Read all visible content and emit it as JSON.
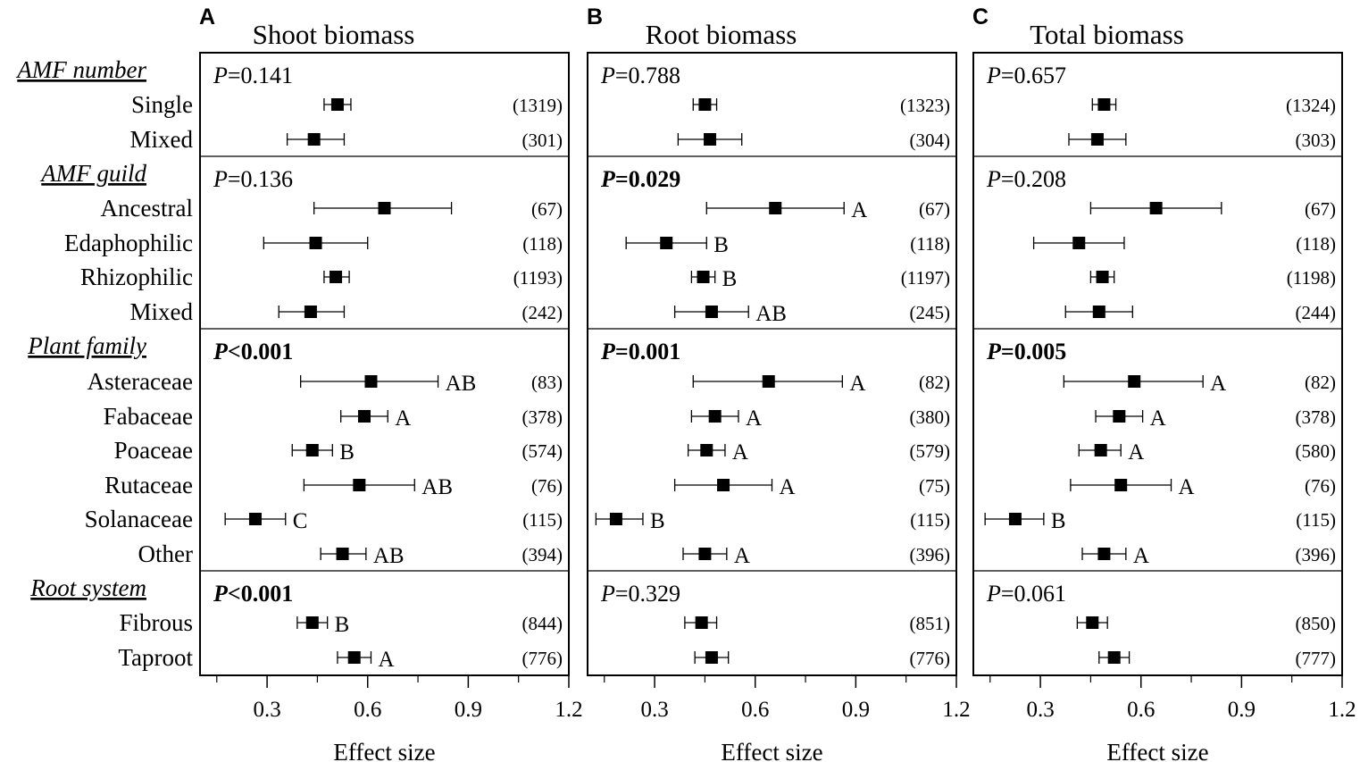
{
  "chart_data": {
    "type": "forest",
    "xlabel": "Effect size",
    "xlim": [
      0.1,
      1.2
    ],
    "xticks": [
      0.3,
      0.6,
      0.9,
      1.2
    ],
    "xtick_labels": [
      "0.3",
      "0.6",
      "0.9",
      "1.2"
    ],
    "groups": [
      {
        "label": "AMF number",
        "rows": [
          "Single",
          "Mixed"
        ]
      },
      {
        "label": "AMF guild",
        "rows": [
          "Ancestral",
          "Edaphophilic",
          "Rhizophilic",
          "Mixed"
        ]
      },
      {
        "label": "Plant family",
        "rows": [
          "Asteraceae",
          "Fabaceae",
          "Poaceae",
          "Rutaceae",
          "Solanaceae",
          "Other"
        ]
      },
      {
        "label": "Root system",
        "rows": [
          "Fibrous",
          "Taproot"
        ]
      }
    ],
    "panels": [
      {
        "letter": "A",
        "title": "Shoot biomass",
        "p_values": [
          {
            "p": "P",
            "v": "=0.141",
            "bold": false
          },
          {
            "p": "P",
            "v": "=0.136",
            "bold": false
          },
          {
            "p": "P",
            "v": "<0.001",
            "bold": true
          },
          {
            "p": "P",
            "v": "<0.001",
            "bold": true
          }
        ],
        "rows": [
          {
            "mean": 0.51,
            "lo": 0.47,
            "hi": 0.55,
            "n": "(1319)",
            "letter": ""
          },
          {
            "mean": 0.44,
            "lo": 0.36,
            "hi": 0.53,
            "n": "(301)",
            "letter": ""
          },
          {
            "mean": 0.65,
            "lo": 0.44,
            "hi": 0.85,
            "n": "(67)",
            "letter": ""
          },
          {
            "mean": 0.445,
            "lo": 0.29,
            "hi": 0.6,
            "n": "(118)",
            "letter": ""
          },
          {
            "mean": 0.505,
            "lo": 0.47,
            "hi": 0.545,
            "n": "(1193)",
            "letter": ""
          },
          {
            "mean": 0.43,
            "lo": 0.335,
            "hi": 0.53,
            "n": "(242)",
            "letter": ""
          },
          {
            "mean": 0.61,
            "lo": 0.4,
            "hi": 0.81,
            "n": "(83)",
            "letter": "AB"
          },
          {
            "mean": 0.59,
            "lo": 0.52,
            "hi": 0.66,
            "n": "(378)",
            "letter": "A"
          },
          {
            "mean": 0.435,
            "lo": 0.375,
            "hi": 0.495,
            "n": "(574)",
            "letter": "B"
          },
          {
            "mean": 0.575,
            "lo": 0.41,
            "hi": 0.74,
            "n": "(76)",
            "letter": "AB"
          },
          {
            "mean": 0.265,
            "lo": 0.175,
            "hi": 0.355,
            "n": "(115)",
            "letter": "C"
          },
          {
            "mean": 0.525,
            "lo": 0.46,
            "hi": 0.595,
            "n": "(394)",
            "letter": "AB"
          },
          {
            "mean": 0.435,
            "lo": 0.39,
            "hi": 0.48,
            "n": "(844)",
            "letter": "B"
          },
          {
            "mean": 0.56,
            "lo": 0.51,
            "hi": 0.61,
            "n": "(776)",
            "letter": "A"
          }
        ]
      },
      {
        "letter": "B",
        "title": "Root biomass",
        "p_values": [
          {
            "p": "P",
            "v": "=0.788",
            "bold": false
          },
          {
            "p": "P",
            "v": "=0.029",
            "bold": true
          },
          {
            "p": "P",
            "v": "=0.001",
            "bold": true
          },
          {
            "p": "P",
            "v": "=0.329",
            "bold": false
          }
        ],
        "rows": [
          {
            "mean": 0.45,
            "lo": 0.415,
            "hi": 0.485,
            "n": "(1323)",
            "letter": ""
          },
          {
            "mean": 0.465,
            "lo": 0.37,
            "hi": 0.56,
            "n": "(304)",
            "letter": ""
          },
          {
            "mean": 0.66,
            "lo": 0.455,
            "hi": 0.865,
            "n": "(67)",
            "letter": "A"
          },
          {
            "mean": 0.335,
            "lo": 0.215,
            "hi": 0.455,
            "n": "(118)",
            "letter": "B"
          },
          {
            "mean": 0.445,
            "lo": 0.41,
            "hi": 0.48,
            "n": "(1197)",
            "letter": "B"
          },
          {
            "mean": 0.47,
            "lo": 0.36,
            "hi": 0.58,
            "n": "(245)",
            "letter": "AB"
          },
          {
            "mean": 0.64,
            "lo": 0.415,
            "hi": 0.86,
            "n": "(82)",
            "letter": "A"
          },
          {
            "mean": 0.48,
            "lo": 0.41,
            "hi": 0.55,
            "n": "(380)",
            "letter": "A"
          },
          {
            "mean": 0.455,
            "lo": 0.4,
            "hi": 0.51,
            "n": "(579)",
            "letter": "A"
          },
          {
            "mean": 0.505,
            "lo": 0.36,
            "hi": 0.65,
            "n": "(75)",
            "letter": "A"
          },
          {
            "mean": 0.185,
            "lo": 0.125,
            "hi": 0.265,
            "n": "(115)",
            "letter": "B"
          },
          {
            "mean": 0.45,
            "lo": 0.385,
            "hi": 0.515,
            "n": "(396)",
            "letter": "A"
          },
          {
            "mean": 0.44,
            "lo": 0.39,
            "hi": 0.485,
            "n": "(851)",
            "letter": ""
          },
          {
            "mean": 0.47,
            "lo": 0.42,
            "hi": 0.52,
            "n": "(776)",
            "letter": ""
          }
        ]
      },
      {
        "letter": "C",
        "title": "Total biomass",
        "p_values": [
          {
            "p": "P",
            "v": "=0.657",
            "bold": false
          },
          {
            "p": "P",
            "v": "=0.208",
            "bold": false
          },
          {
            "p": "P",
            "v": "=0.005",
            "bold": true
          },
          {
            "p": "P",
            "v": "=0.061",
            "bold": false
          }
        ],
        "rows": [
          {
            "mean": 0.49,
            "lo": 0.455,
            "hi": 0.525,
            "n": "(1324)",
            "letter": ""
          },
          {
            "mean": 0.47,
            "lo": 0.385,
            "hi": 0.555,
            "n": "(303)",
            "letter": ""
          },
          {
            "mean": 0.645,
            "lo": 0.45,
            "hi": 0.84,
            "n": "(67)",
            "letter": ""
          },
          {
            "mean": 0.415,
            "lo": 0.28,
            "hi": 0.55,
            "n": "(118)",
            "letter": ""
          },
          {
            "mean": 0.485,
            "lo": 0.45,
            "hi": 0.52,
            "n": "(1198)",
            "letter": ""
          },
          {
            "mean": 0.475,
            "lo": 0.375,
            "hi": 0.575,
            "n": "(244)",
            "letter": ""
          },
          {
            "mean": 0.58,
            "lo": 0.37,
            "hi": 0.785,
            "n": "(82)",
            "letter": "A"
          },
          {
            "mean": 0.535,
            "lo": 0.465,
            "hi": 0.605,
            "n": "(378)",
            "letter": "A"
          },
          {
            "mean": 0.48,
            "lo": 0.415,
            "hi": 0.54,
            "n": "(580)",
            "letter": "A"
          },
          {
            "mean": 0.54,
            "lo": 0.39,
            "hi": 0.69,
            "n": "(76)",
            "letter": "A"
          },
          {
            "mean": 0.225,
            "lo": 0.135,
            "hi": 0.31,
            "n": "(115)",
            "letter": "B"
          },
          {
            "mean": 0.49,
            "lo": 0.425,
            "hi": 0.555,
            "n": "(396)",
            "letter": "A"
          },
          {
            "mean": 0.455,
            "lo": 0.41,
            "hi": 0.5,
            "n": "(850)",
            "letter": ""
          },
          {
            "mean": 0.52,
            "lo": 0.475,
            "hi": 0.565,
            "n": "(777)",
            "letter": ""
          }
        ]
      }
    ]
  }
}
